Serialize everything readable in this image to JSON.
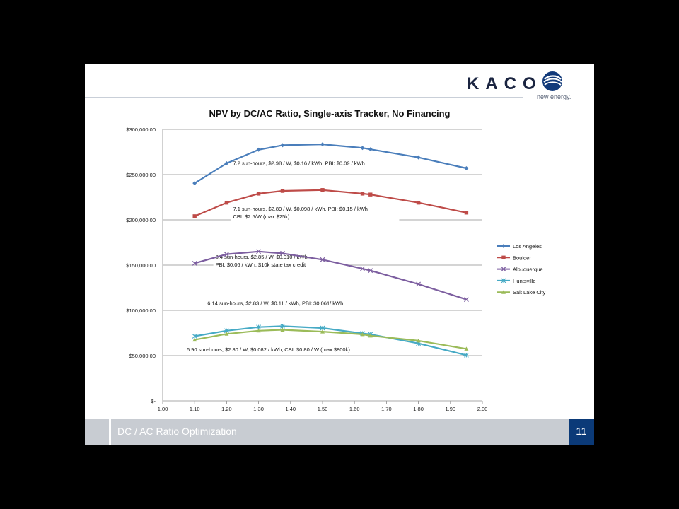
{
  "logo": {
    "word": "KACO",
    "tagline": "new energy."
  },
  "footer": {
    "title": "DC / AC Ratio Optimization",
    "page": "11"
  },
  "chart_data": {
    "type": "line",
    "title": "NPV by DC/AC Ratio, Single-axis Tracker, No Financing",
    "xlabel": "",
    "ylabel": "",
    "xlim": [
      1.0,
      2.0
    ],
    "ylim": [
      0,
      300000
    ],
    "x_ticks": [
      "1.00",
      "1.10",
      "1.20",
      "1.30",
      "1.40",
      "1.50",
      "1.60",
      "1.70",
      "1.80",
      "1.90",
      "2.00"
    ],
    "y_ticks": [
      {
        "v": 300000,
        "label": "$300,000.00"
      },
      {
        "v": 250000,
        "label": "$250,000.00"
      },
      {
        "v": 200000,
        "label": "$200,000.00"
      },
      {
        "v": 150000,
        "label": "$150,000.00"
      },
      {
        "v": 100000,
        "label": "$100,000.00"
      },
      {
        "v": 50000,
        "label": "$50,000.00"
      },
      {
        "v": 0,
        "label": "$-"
      }
    ],
    "grid": true,
    "legend_position": "right",
    "series": [
      {
        "name": "Los Angeles",
        "color": "#4a7ebb",
        "marker": "diamond",
        "x": [
          1.1,
          1.2,
          1.3,
          1.375,
          1.5,
          1.625,
          1.65,
          1.8,
          1.95
        ],
        "y": [
          240500,
          262500,
          277500,
          282500,
          283500,
          279500,
          278000,
          269000,
          257000
        ]
      },
      {
        "name": "Boulder",
        "color": "#be4b48",
        "marker": "square",
        "x": [
          1.1,
          1.2,
          1.3,
          1.375,
          1.5,
          1.625,
          1.65,
          1.8,
          1.95
        ],
        "y": [
          204000,
          219000,
          229000,
          232000,
          233000,
          229000,
          228000,
          219000,
          208000
        ]
      },
      {
        "name": "Albuquerque",
        "color": "#7d5fa0",
        "marker": "x",
        "x": [
          1.1,
          1.2,
          1.3,
          1.375,
          1.5,
          1.625,
          1.65,
          1.8,
          1.95
        ],
        "y": [
          152000,
          162000,
          165000,
          163000,
          156000,
          146000,
          144000,
          129000,
          112000
        ]
      },
      {
        "name": "Huntsville",
        "color": "#46aac5",
        "marker": "star",
        "x": [
          1.1,
          1.2,
          1.3,
          1.375,
          1.5,
          1.625,
          1.65,
          1.8,
          1.95
        ],
        "y": [
          71500,
          77500,
          81500,
          82500,
          80500,
          74500,
          73500,
          63500,
          50500
        ]
      },
      {
        "name": "Salt Lake City",
        "color": "#9bbb59",
        "marker": "triangle",
        "x": [
          1.1,
          1.2,
          1.3,
          1.375,
          1.5,
          1.625,
          1.65,
          1.8,
          1.95
        ],
        "y": [
          67500,
          74000,
          77500,
          78500,
          76500,
          73500,
          72000,
          66500,
          57500
        ]
      }
    ],
    "annotations": [
      {
        "lines": [
          "7.2 sun-hours, $2.98 / W, $0.16 / kWh, PBI:  $0.09 / kWh"
        ]
      },
      {
        "lines": [
          "7.1 sun-hours, $2.89 / W, $0.098 / kWh, PBI:  $0.15 / kWh",
          "CBI:  $2.5/W  (max $25k)"
        ]
      },
      {
        "lines": [
          "8.4 sun-hours, $2.85 / W, $0.010  / kWh",
          "PBI:  $0.06  / kWh, $10k state tax credit"
        ]
      },
      {
        "lines": [
          "6.14 sun-hours, $2.83 / W, $0.11 / kWh, PBI:  $0.061/ kWh"
        ]
      },
      {
        "lines": [
          "6.90 sun-hours, $2.80 / W, $0.082 / kWh, CBI: $0.80  / W (max $800k)"
        ]
      }
    ]
  }
}
